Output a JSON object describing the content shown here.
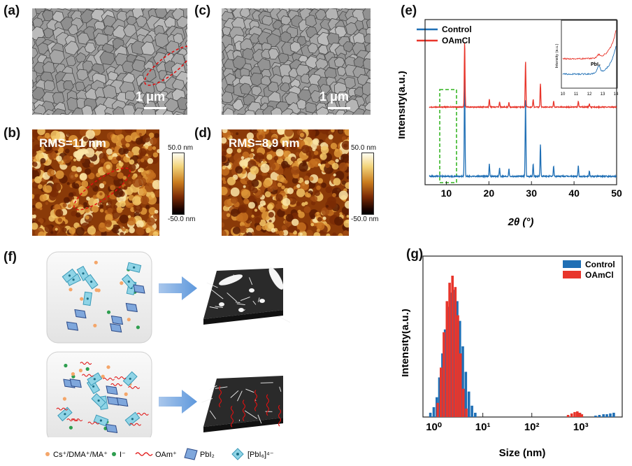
{
  "panels": {
    "a": "(a)",
    "b": "(b)",
    "c": "(c)",
    "d": "(d)",
    "e": "(e)",
    "f": "(f)",
    "g": "(g)"
  },
  "sem": {
    "scale_a": "1 μm",
    "scale_c": "1 μm"
  },
  "afm": {
    "rms_b": "RMS=11 nm",
    "rms_d": "RMS=8.9 nm",
    "cbar_top": "50.0 nm",
    "cbar_bottom": "-50.0 nm"
  },
  "schematic": {
    "legend": {
      "ions": "Cs⁺/DMA⁺/MA⁺",
      "iodide": "I⁻",
      "oam": "OAm⁺",
      "pbi2": "PbI₂",
      "pbi6": "[PbI₆]⁴⁻"
    }
  },
  "colors": {
    "control": "#1f6fb5",
    "oamcl": "#e8352b"
  },
  "chart_data": [
    {
      "type": "line",
      "panel": "e",
      "xlabel": "2θ (°)",
      "ylabel": "Intensity(a.u.)",
      "xlim": [
        5,
        50
      ],
      "xticks": [
        "10",
        "20",
        "30",
        "40",
        "50"
      ],
      "legend": "top-left",
      "series": [
        {
          "name": "Control",
          "peaks": [
            {
              "x": 14.3,
              "h": 1.0
            },
            {
              "x": 20.1,
              "h": 0.12
            },
            {
              "x": 22.5,
              "h": 0.08
            },
            {
              "x": 24.7,
              "h": 0.07
            },
            {
              "x": 28.6,
              "h": 0.75
            },
            {
              "x": 30.4,
              "h": 0.12
            },
            {
              "x": 32.1,
              "h": 0.3
            },
            {
              "x": 35.2,
              "h": 0.1
            },
            {
              "x": 41.0,
              "h": 0.1
            },
            {
              "x": 43.6,
              "h": 0.05
            }
          ]
        },
        {
          "name": "OAmCl",
          "peaks": [
            {
              "x": 14.3,
              "h": 0.85
            },
            {
              "x": 20.1,
              "h": 0.1
            },
            {
              "x": 22.5,
              "h": 0.07
            },
            {
              "x": 24.7,
              "h": 0.06
            },
            {
              "x": 28.6,
              "h": 0.6
            },
            {
              "x": 30.4,
              "h": 0.1
            },
            {
              "x": 32.1,
              "h": 0.3
            },
            {
              "x": 35.2,
              "h": 0.08
            },
            {
              "x": 41.0,
              "h": 0.08
            },
            {
              "x": 43.6,
              "h": 0.04
            }
          ]
        }
      ],
      "inset": {
        "ylabel": "Intensity (a.u.)",
        "xticks": [
          "10",
          "11",
          "12",
          "13",
          "14"
        ],
        "annotation": "PbI₂"
      }
    },
    {
      "type": "bar",
      "panel": "g",
      "xlabel": "Size (nm)",
      "ylabel": "Intensity(a.u.)",
      "xscale": "log",
      "xticks": [
        "10⁰",
        "10¹",
        "10²",
        "10³"
      ],
      "legend": "top-right",
      "series": [
        {
          "name": "Control",
          "x": [
            0.85,
            1.0,
            1.15,
            1.3,
            1.5,
            1.7,
            2.0,
            2.3,
            2.6,
            3.0,
            3.4,
            3.9,
            4.5,
            5.2,
            6.0,
            7.0,
            2000,
            2400,
            2900,
            3400,
            4000,
            4700
          ],
          "values": [
            0.03,
            0.07,
            0.14,
            0.28,
            0.45,
            0.62,
            0.78,
            0.88,
            0.9,
            0.82,
            0.68,
            0.5,
            0.32,
            0.18,
            0.08,
            0.03,
            0.01,
            0.015,
            0.02,
            0.02,
            0.025,
            0.03
          ]
        },
        {
          "name": "OAmCl",
          "x": [
            1.2,
            1.4,
            1.6,
            1.85,
            2.1,
            2.4,
            2.75,
            3.1,
            3.5,
            4.0,
            4.6,
            550,
            650,
            750,
            850,
            950,
            1050
          ],
          "values": [
            0.1,
            0.35,
            0.6,
            0.82,
            0.95,
            1.0,
            0.92,
            0.72,
            0.45,
            0.2,
            0.06,
            0.015,
            0.025,
            0.035,
            0.04,
            0.03,
            0.02
          ]
        }
      ]
    }
  ]
}
